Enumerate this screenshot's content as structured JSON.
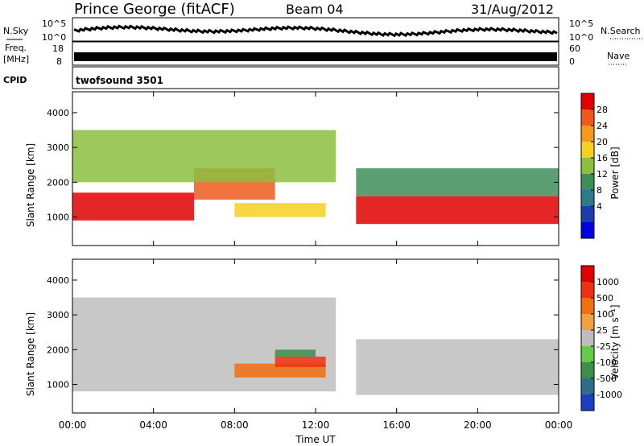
{
  "header": {
    "station": "Prince George (fitACF)",
    "beam": "Beam 04",
    "date": "31/Aug/2012"
  },
  "noise_panel": {
    "left_label": "N.Sky",
    "left_ticks": [
      "10^5",
      "10^0"
    ],
    "right_label": "N.Search",
    "right_ticks": [
      "10^5",
      "10^0"
    ]
  },
  "freq_panel": {
    "left_label_lines": [
      "Freq.",
      "[MHz]"
    ],
    "left_ticks": [
      "18",
      "8"
    ],
    "right_label": "Nave",
    "right_ticks": [
      "60",
      "0"
    ]
  },
  "cpid_panel": {
    "left_label": "CPID",
    "value": "twofsound 3501"
  },
  "x_axis": {
    "label": "Time UT",
    "ticks": [
      "00:00",
      "04:00",
      "08:00",
      "12:00",
      "16:00",
      "20:00",
      "00:00"
    ]
  },
  "power_colorbar": {
    "label": "Power [dB]",
    "ticks": [
      "28",
      "24",
      "20",
      "16",
      "12",
      "8",
      "4"
    ],
    "colors": [
      "#0000e0",
      "#1c3cb0",
      "#2e7a8c",
      "#3e8e5a",
      "#8cc040",
      "#f4d020",
      "#f39a1c",
      "#ef5a1c",
      "#e00000"
    ]
  },
  "velocity_colorbar": {
    "label": "Velocity [m s⁻¹]",
    "ticks": [
      "1000",
      "500",
      "100",
      "25",
      "-25",
      "-100",
      "-500",
      "-1000"
    ],
    "colors": [
      "#1840c0",
      "#2f6d8a",
      "#3c8e4a",
      "#66c84c",
      "#bebebe",
      "#f0a040",
      "#f07010",
      "#f03010",
      "#e00000"
    ]
  },
  "chart_data": [
    {
      "type": "heatmap",
      "title": "Power",
      "xlabel": "Time UT",
      "ylabel": "Slant Range [km]",
      "xlim": [
        0,
        24
      ],
      "ylim": [
        180,
        4600
      ],
      "yticks": [
        1000,
        2000,
        3000,
        4000
      ],
      "ytick_labels": [
        "1000",
        "2000",
        "3000",
        "4000"
      ],
      "colorbar_label": "Power [dB]",
      "colorbar_range": [
        0,
        32
      ],
      "regions": [
        {
          "t": [
            0,
            6
          ],
          "r": [
            900,
            1700
          ],
          "level": "28"
        },
        {
          "t": [
            6,
            10
          ],
          "r": [
            1500,
            2400
          ],
          "level": "24"
        },
        {
          "t": [
            8,
            12.5
          ],
          "r": [
            1000,
            1400
          ],
          "level": "16"
        },
        {
          "t": [
            0,
            13
          ],
          "r": [
            2000,
            3500
          ],
          "level": "12"
        },
        {
          "t": [
            14,
            24
          ],
          "r": [
            800,
            1600
          ],
          "level": "28"
        },
        {
          "t": [
            14,
            24
          ],
          "r": [
            1600,
            2400
          ],
          "level": "8"
        }
      ]
    },
    {
      "type": "heatmap",
      "title": "Velocity",
      "xlabel": "Time UT",
      "ylabel": "Slant Range [km]",
      "xlim": [
        0,
        24
      ],
      "ylim": [
        180,
        4600
      ],
      "yticks": [
        1000,
        2000,
        3000,
        4000
      ],
      "ytick_labels": [
        "1000",
        "2000",
        "3000",
        "4000"
      ],
      "colorbar_label": "Velocity [m s⁻¹]",
      "colorbar_range": [
        -1000,
        1000
      ],
      "regions": [
        {
          "t": [
            0,
            13
          ],
          "r": [
            800,
            3500
          ],
          "level": "ground scatter (gray)"
        },
        {
          "t": [
            8,
            12.5
          ],
          "r": [
            1200,
            1600
          ],
          "level": "100"
        },
        {
          "t": [
            10,
            12.5
          ],
          "r": [
            1500,
            1800
          ],
          "level": "500"
        },
        {
          "t": [
            10,
            12
          ],
          "r": [
            1800,
            2000
          ],
          "level": "-500"
        },
        {
          "t": [
            14,
            24
          ],
          "r": [
            700,
            2300
          ],
          "level": "ground scatter (gray)"
        }
      ]
    }
  ]
}
